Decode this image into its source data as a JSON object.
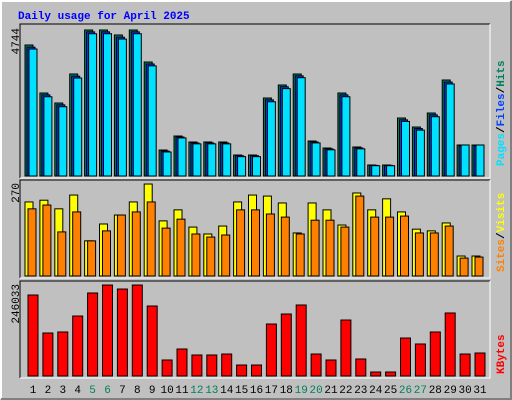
{
  "chart_data": [
    {
      "type": "bar",
      "title": "Daily usage for April 2025",
      "title_color": "#0000ff",
      "ylim": [
        0,
        4744
      ],
      "yticks": [
        4744
      ],
      "legend_separator": "/",
      "series": [
        {
          "name": "Hits",
          "color": "#00805c",
          "values": [
            4199,
            2660,
            2340,
            3270,
            4680,
            4680,
            4520,
            4680,
            3654,
            833,
            1282,
            1090,
            1090,
            1090,
            673,
            673,
            2500,
            2917,
            3270,
            1122,
            897,
            2660,
            930,
            353,
            353,
            1859,
            1570,
            2019,
            3077,
            994,
            994
          ]
        },
        {
          "name": "Files",
          "color": "#0040ff",
          "values": [
            4130,
            2600,
            2280,
            3200,
            4620,
            4620,
            4450,
            4620,
            3590,
            800,
            1250,
            1060,
            1060,
            1060,
            650,
            650,
            2440,
            2860,
            3210,
            1090,
            870,
            2600,
            900,
            340,
            340,
            1800,
            1520,
            1960,
            3010,
            970,
            970
          ]
        },
        {
          "name": "Pages",
          "color": "#00e0ff",
          "values": [
            4070,
            2540,
            2220,
            3140,
            4560,
            4560,
            4390,
            4560,
            3530,
            770,
            1220,
            1030,
            1030,
            1030,
            620,
            620,
            2380,
            2800,
            3150,
            1060,
            840,
            2540,
            870,
            330,
            330,
            1750,
            1470,
            1900,
            2950,
            994,
            994
          ]
        }
      ]
    },
    {
      "type": "bar",
      "ylim": [
        0,
        270
      ],
      "yticks": [
        270
      ],
      "legend_separator": "/",
      "series": [
        {
          "name": "Visits",
          "color": "#ffff00",
          "values": [
            215,
            220,
            195,
            235,
            102,
            151,
            177,
            215,
            267,
            160,
            192,
            142,
            122,
            145,
            215,
            235,
            232,
            212,
            125,
            212,
            192,
            148,
            241,
            192,
            224,
            186,
            136,
            131,
            154,
            58,
            58
          ]
        },
        {
          "name": "Sites",
          "color": "#ff8000",
          "values": [
            195,
            206,
            128,
            186,
            102,
            131,
            177,
            186,
            215,
            139,
            165,
            122,
            113,
            119,
            192,
            192,
            180,
            171,
            122,
            162,
            162,
            142,
            232,
            171,
            171,
            174,
            125,
            125,
            145,
            52,
            55
          ]
        }
      ]
    },
    {
      "type": "bar",
      "ylim": [
        0,
        246033
      ],
      "yticks": [
        246033
      ],
      "categories": [
        "1",
        "2",
        "3",
        "4",
        "5",
        "6",
        "7",
        "8",
        "9",
        "10",
        "11",
        "12",
        "13",
        "14",
        "15",
        "16",
        "17",
        "18",
        "19",
        "20",
        "21",
        "22",
        "23",
        "24",
        "25",
        "26",
        "27",
        "28",
        "29",
        "30",
        "31"
      ],
      "category_colors": [
        "#000000",
        "#000000",
        "#000000",
        "#000000",
        "#00805c",
        "#00805c",
        "#000000",
        "#000000",
        "#000000",
        "#000000",
        "#000000",
        "#00805c",
        "#00805c",
        "#000000",
        "#000000",
        "#000000",
        "#000000",
        "#000000",
        "#00805c",
        "#00805c",
        "#000000",
        "#000000",
        "#000000",
        "#000000",
        "#000000",
        "#00805c",
        "#00805c",
        "#000000",
        "#000000",
        "#000000",
        "#000000"
      ],
      "series": [
        {
          "name": "KBytes",
          "color": "#ff0000",
          "values": [
            216600,
            115000,
            117700,
            160400,
            222000,
            243300,
            232600,
            243300,
            187200,
            42800,
            72200,
            56200,
            56200,
            58800,
            29400,
            29400,
            139000,
            165800,
            189900,
            58800,
            42800,
            149700,
            45500,
            10700,
            10700,
            101600,
            85600,
            117700,
            168500,
            58800,
            61500
          ]
        }
      ]
    }
  ]
}
